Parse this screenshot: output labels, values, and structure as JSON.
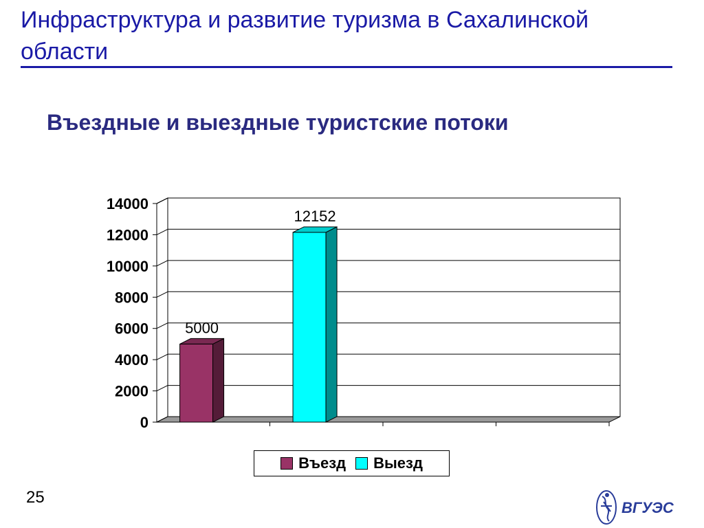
{
  "slide": {
    "title": "Инфраструктура и развитие туризма в Сахалинской области",
    "page_number": "25",
    "logo_text": "ВГУЭС"
  },
  "chart_data": {
    "type": "bar",
    "title": "Въездные и выездные  туристские потоки",
    "xlabel": "",
    "ylabel": "",
    "ylim": [
      0,
      14000
    ],
    "yticks": [
      0,
      2000,
      4000,
      6000,
      8000,
      10000,
      12000,
      14000
    ],
    "series": [
      {
        "name": "Въезд",
        "values": [
          5000
        ],
        "color": "#993366"
      },
      {
        "name": "Выезд",
        "values": [
          12152
        ],
        "color": "#00ffff"
      }
    ],
    "data_labels": [
      "5000",
      "12152"
    ],
    "grid": true,
    "legend": "bottom",
    "three_d": true
  }
}
